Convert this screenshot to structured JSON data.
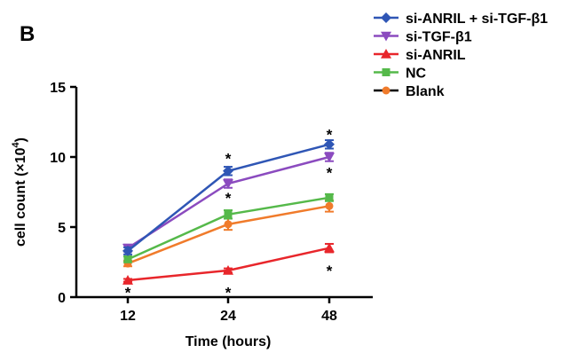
{
  "panel_label": "B",
  "chart_data": {
    "type": "line",
    "xlabel": "Time (hours)",
    "ylabel_main": "cell count (×10",
    "ylabel_sup": "4",
    "ylabel_close": ")",
    "categories": [
      "12",
      "24",
      "48"
    ],
    "ylim": [
      0,
      15
    ],
    "yticks": [
      0,
      5,
      10,
      15
    ],
    "yticklabels": [
      "0",
      "5",
      "10",
      "15"
    ],
    "grid": false,
    "legend_position": "top-right",
    "series": [
      {
        "name": "si-ANRIL + si-TGF-β1",
        "color": "#2f56b5",
        "marker": "diamond",
        "values": [
          3.3,
          9.0,
          10.9
        ],
        "errors": [
          0.25,
          0.3,
          0.3
        ]
      },
      {
        "name": "si-TGF-β1",
        "color": "#8b4bbf",
        "marker": "triangle-down",
        "values": [
          3.5,
          8.1,
          10.0
        ],
        "errors": [
          0.25,
          0.3,
          0.3
        ]
      },
      {
        "name": "si-ANRIL",
        "color": "#e8262b",
        "marker": "triangle-up",
        "values": [
          1.2,
          1.9,
          3.5
        ],
        "errors": [
          0.1,
          0.15,
          0.3
        ]
      },
      {
        "name": "NC",
        "color": "#55b94a",
        "marker": "square",
        "values": [
          2.7,
          5.9,
          7.1
        ],
        "errors": [
          0.2,
          0.3,
          0.25
        ]
      },
      {
        "name": "Blank",
        "color": "#f07b2b",
        "marker": "circle",
        "values": [
          2.4,
          5.2,
          6.5
        ],
        "errors": [
          0.2,
          0.4,
          0.4
        ]
      }
    ],
    "annotations": [
      {
        "text": "*",
        "x": "12",
        "y": 0.35
      },
      {
        "text": "*",
        "x": "24",
        "y": 0.35
      },
      {
        "text": "*",
        "x": "24",
        "y": 7.1
      },
      {
        "text": "*",
        "x": "24",
        "y": 9.9
      },
      {
        "text": "*",
        "x": "48",
        "y": 1.9
      },
      {
        "text": "*",
        "x": "48",
        "y": 8.9
      },
      {
        "text": "*",
        "x": "48",
        "y": 11.6
      }
    ]
  }
}
